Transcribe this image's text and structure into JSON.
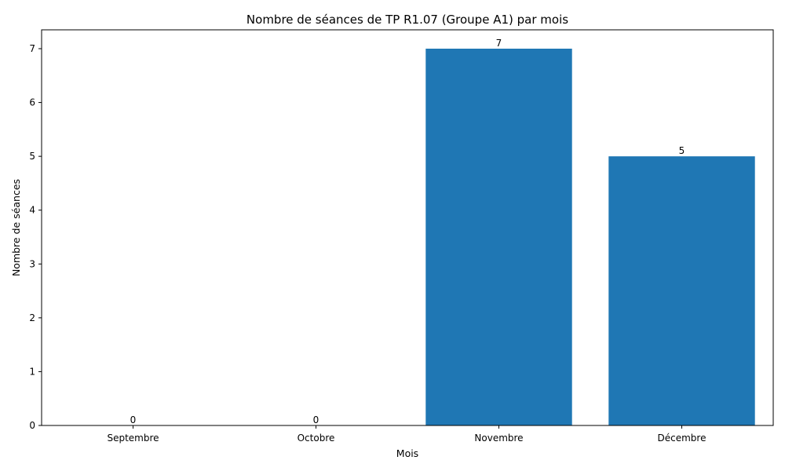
{
  "chart_data": {
    "type": "bar",
    "title": "Nombre de séances de TP R1.07 (Groupe A1) par mois",
    "xlabel": "Mois",
    "ylabel": "Nombre de séances",
    "categories": [
      "Septembre",
      "Octobre",
      "Novembre",
      "Décembre"
    ],
    "values": [
      0,
      0,
      7,
      5
    ],
    "data_labels": [
      "0",
      "0",
      "7",
      "5"
    ],
    "ylim": [
      0,
      7.35
    ],
    "yticks": [
      0,
      1,
      2,
      3,
      4,
      5,
      6,
      7
    ],
    "bar_color": "#1f77b4",
    "grid": false,
    "legend": false
  }
}
